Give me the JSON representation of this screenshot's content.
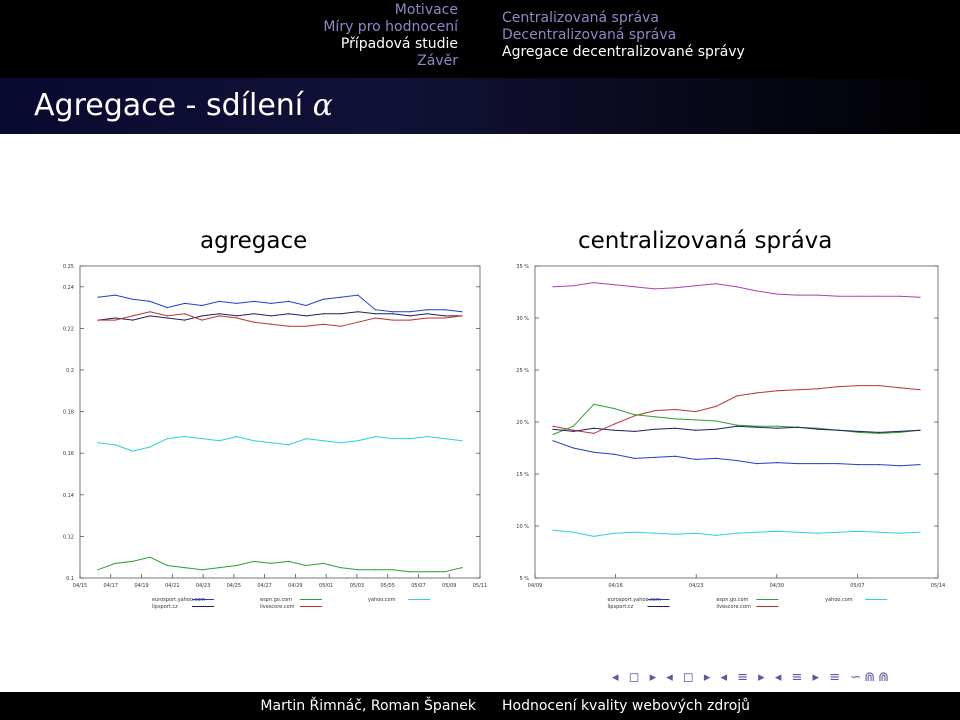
{
  "header": {
    "sections_left": [
      {
        "label": "Motivace",
        "active": false
      },
      {
        "label": "Míry pro hodnocení",
        "active": false
      },
      {
        "label": "Případová studie",
        "active": true
      },
      {
        "label": "Závěr",
        "active": false
      }
    ],
    "sections_right": [
      {
        "label": "Centralizovaná správa",
        "active": false
      },
      {
        "label": "Decentralizovaná správa",
        "active": false
      },
      {
        "label": "Agregace decentralizované správy",
        "active": true
      }
    ]
  },
  "frame": {
    "title_text": "Agregace - sdílení ",
    "title_math": "α"
  },
  "panels": {
    "left_title": "agregace",
    "right_title": "centralizovaná správa"
  },
  "nav_symbols": "◂ ◻ ▸ ◂ ◻ ▸ ◂ ≡ ▸ ◂ ≡ ▸ ≡ ∽⋒⋒",
  "footer": {
    "authors": "Martin Řimnáč, Roman Španek",
    "title": "Hodnocení kvality webových zdrojů"
  },
  "colors": {
    "eurosport": "#1f3fcf",
    "espn": "#2f9f2f",
    "yahoo": "#2bd0e0",
    "isport": "#202060",
    "livescore": "#c03030",
    "right_purple": "#b040b0"
  },
  "chart_data": [
    {
      "type": "line",
      "title": "agregace",
      "x_ticks": [
        "04/15",
        "04/17",
        "04/19",
        "04/21",
        "04/23",
        "04/25",
        "04/27",
        "04/29",
        "05/01",
        "05/03",
        "05/05",
        "05/07",
        "05/09",
        "05/11"
      ],
      "y_ticks": [
        "0.1",
        "0.12",
        "0.14",
        "0.16",
        "0.18",
        "0.2",
        "0.22",
        "0.24",
        "0.25"
      ],
      "ylim": [
        0.1,
        0.25
      ],
      "grid": false,
      "legend": [
        [
          "eurosport.yahoo.com",
          "espn.go.com",
          "yahoo.com"
        ],
        [
          "lipsport.cz",
          "livescore.com"
        ]
      ],
      "series": [
        {
          "name": "eurosport.yahoo.com",
          "color_key": "eurosport",
          "values": [
            0.235,
            0.236,
            0.234,
            0.233,
            0.23,
            0.232,
            0.231,
            0.233,
            0.232,
            0.233,
            0.232,
            0.233,
            0.231,
            0.234,
            0.235,
            0.236,
            0.229,
            0.228,
            0.228,
            0.229,
            0.229,
            0.228
          ]
        },
        {
          "name": "lipsport.cz",
          "color_key": "isport",
          "values": [
            0.224,
            0.225,
            0.224,
            0.226,
            0.225,
            0.224,
            0.226,
            0.227,
            0.226,
            0.227,
            0.226,
            0.227,
            0.226,
            0.227,
            0.227,
            0.228,
            0.227,
            0.227,
            0.226,
            0.227,
            0.226,
            0.226
          ]
        },
        {
          "name": "livescore.com",
          "color_key": "livescore",
          "values": [
            0.224,
            0.224,
            0.226,
            0.228,
            0.226,
            0.227,
            0.224,
            0.226,
            0.225,
            0.223,
            0.222,
            0.221,
            0.221,
            0.222,
            0.221,
            0.223,
            0.225,
            0.224,
            0.224,
            0.225,
            0.225,
            0.226
          ]
        },
        {
          "name": "yahoo.com",
          "color_key": "yahoo",
          "values": [
            0.165,
            0.164,
            0.161,
            0.163,
            0.167,
            0.168,
            0.167,
            0.166,
            0.168,
            0.166,
            0.165,
            0.164,
            0.167,
            0.166,
            0.165,
            0.166,
            0.168,
            0.167,
            0.167,
            0.168,
            0.167,
            0.166
          ]
        },
        {
          "name": "espn.go.com",
          "color_key": "espn",
          "values": [
            0.104,
            0.107,
            0.108,
            0.11,
            0.106,
            0.105,
            0.104,
            0.105,
            0.106,
            0.108,
            0.107,
            0.108,
            0.106,
            0.107,
            0.105,
            0.104,
            0.104,
            0.104,
            0.103,
            0.103,
            0.103,
            0.105
          ]
        }
      ]
    },
    {
      "type": "line",
      "title": "centralizovaná správa",
      "x_ticks": [
        "04/09",
        "04/16",
        "04/23",
        "04/30",
        "05/07",
        "05/14"
      ],
      "y_ticks": [
        "5 %",
        "10 %",
        "15 %",
        "20 %",
        "25 %",
        "30 %",
        "35 %"
      ],
      "ylim": [
        5,
        35
      ],
      "grid": false,
      "legend": [
        [
          "eurosport.yahoo.com",
          "espn.go.com",
          "yahoo.com"
        ],
        [
          "lipsport.cz",
          "livescore.com"
        ]
      ],
      "series": [
        {
          "name": "eurosport.yahoo.com",
          "color_key": "right_purple",
          "values": [
            33.0,
            33.1,
            33.4,
            33.2,
            33.0,
            32.8,
            32.9,
            33.1,
            33.3,
            33.0,
            32.6,
            32.3,
            32.2,
            32.2,
            32.1,
            32.1,
            32.1,
            32.1,
            32.0
          ]
        },
        {
          "name": "livescore.com",
          "color_key": "livescore",
          "values": [
            19.6,
            19.2,
            18.9,
            19.8,
            20.6,
            21.1,
            21.2,
            21.0,
            21.5,
            22.5,
            22.8,
            23.0,
            23.1,
            23.2,
            23.4,
            23.5,
            23.5,
            23.3,
            23.1
          ]
        },
        {
          "name": "espn.go.com",
          "color_key": "espn",
          "values": [
            18.8,
            19.6,
            21.7,
            21.3,
            20.7,
            20.5,
            20.3,
            20.2,
            20.1,
            19.7,
            19.6,
            19.6,
            19.5,
            19.4,
            19.2,
            19.0,
            18.9,
            19.0,
            19.2
          ]
        },
        {
          "name": "lipsport.cz",
          "color_key": "isport",
          "values": [
            19.3,
            19.1,
            19.4,
            19.2,
            19.1,
            19.3,
            19.4,
            19.2,
            19.3,
            19.6,
            19.5,
            19.4,
            19.5,
            19.3,
            19.2,
            19.1,
            19.0,
            19.1,
            19.2
          ]
        },
        {
          "name": "yahoo.com",
          "color_key": "eurosport",
          "values": [
            18.2,
            17.5,
            17.1,
            16.9,
            16.5,
            16.6,
            16.7,
            16.4,
            16.5,
            16.3,
            16.0,
            16.1,
            16.0,
            16.0,
            16.0,
            15.9,
            15.9,
            15.8,
            15.9
          ]
        },
        {
          "name": "yahoo.com",
          "color_key": "yahoo",
          "values": [
            9.6,
            9.4,
            9.0,
            9.3,
            9.4,
            9.3,
            9.2,
            9.3,
            9.1,
            9.3,
            9.4,
            9.5,
            9.4,
            9.3,
            9.4,
            9.5,
            9.4,
            9.3,
            9.4
          ]
        }
      ]
    }
  ]
}
